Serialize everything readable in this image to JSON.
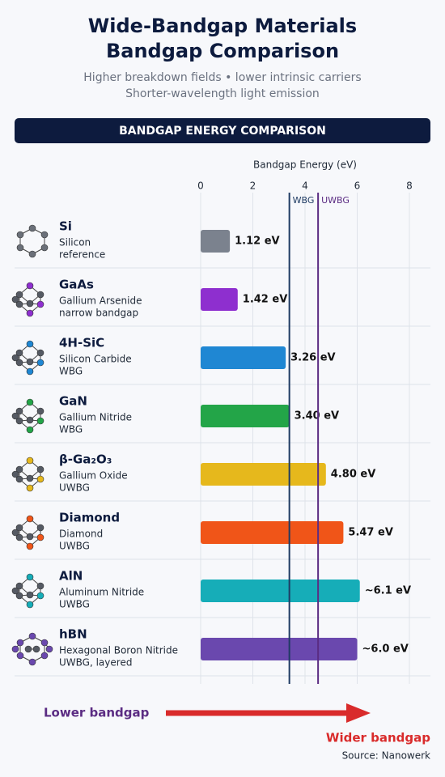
{
  "chart_data": {
    "type": "bar",
    "title": [
      "Wide-Bandgap Materials",
      "Bandgap Comparison"
    ],
    "subtitle": [
      "Higher breakdown fields • lower intrinsic carriers",
      "Shorter-wavelength light emission"
    ],
    "banner": "BANDGAP ENERGY COMPARISON",
    "xlabel": "Bandgap Energy (eV)",
    "xlim": [
      0,
      8
    ],
    "xticks": [
      0,
      2,
      4,
      6,
      8
    ],
    "grid": true,
    "categories": [
      "Si",
      "GaAs",
      "4H-SiC",
      "GaN",
      "β-Ga₂O₃",
      "Diamond",
      "AlN",
      "hBN"
    ],
    "names": [
      "Silicon",
      "Gallium Arsenide",
      "Silicon Carbide",
      "Gallium Nitride",
      "Gallium Oxide",
      "Diamond",
      "Aluminum Nitride",
      "Hexagonal Boron Nitride"
    ],
    "notes": [
      "reference",
      "narrow bandgap",
      "WBG",
      "WBG",
      "UWBG",
      "UWBG",
      "UWBG",
      "UWBG, layered"
    ],
    "values": [
      1.12,
      1.42,
      3.26,
      3.4,
      4.8,
      5.47,
      6.1,
      6.0
    ],
    "value_labels": [
      "1.12 eV",
      "1.42 eV",
      "3.26 eV",
      "3.40 eV",
      "4.80 eV",
      "5.47 eV",
      "~6.1 eV",
      "~6.0 eV"
    ],
    "colors": [
      "#7b828e",
      "#8e2fcf",
      "#1f87d3",
      "#23a548",
      "#e6b81c",
      "#f05518",
      "#16adb8",
      "#6a48ae"
    ],
    "thresholds": [
      {
        "value": 3.4,
        "label": "WBG",
        "color": "#1f3b63"
      },
      {
        "value": 4.5,
        "label": "UWBG",
        "color": "#5b2c83"
      }
    ],
    "left_note": "Lower bandgap",
    "right_note": "Wider bandgap",
    "source": "Source: Nanowerk"
  }
}
